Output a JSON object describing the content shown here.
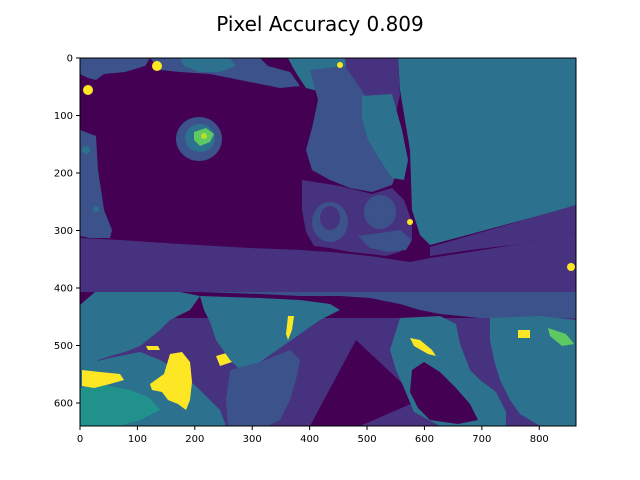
{
  "chart_data": {
    "type": "heatmap",
    "title": "Pixel Accuracy 0.809",
    "xlabel": "",
    "ylabel": "",
    "xlim": [
      0,
      864
    ],
    "ylim": [
      640,
      0
    ],
    "x_ticks": [
      0,
      100,
      200,
      300,
      400,
      500,
      600,
      700,
      800
    ],
    "y_ticks": [
      0,
      100,
      200,
      300,
      400,
      500,
      600
    ],
    "colormap": "viridis",
    "grid": false,
    "colors": {
      "background_class": "#440154",
      "class_dark_violet": "#46327e",
      "class_slate_blue": "#3b528b",
      "class_steel_blue": "#2c728e",
      "class_teal": "#21918c",
      "class_green": "#5ec962",
      "class_lime": "#b5de2b",
      "class_yellow": "#fde725"
    }
  }
}
